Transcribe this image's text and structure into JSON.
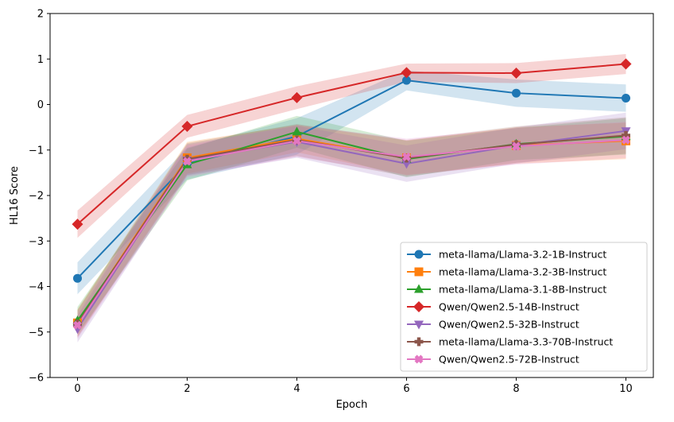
{
  "chart_data": {
    "type": "line",
    "title": "",
    "xlabel": "Epoch",
    "ylabel": "HL16 Score",
    "xlim": [
      -0.5,
      10.5
    ],
    "ylim": [
      -6,
      2
    ],
    "xticks": [
      0,
      2,
      4,
      6,
      8,
      10
    ],
    "yticks": [
      -6,
      -5,
      -4,
      -3,
      -2,
      -1,
      0,
      1,
      2
    ],
    "ytick_labels": [
      "−6",
      "−5",
      "−4",
      "−3",
      "−2",
      "−1",
      "0",
      "1",
      "2"
    ],
    "grid": false,
    "legend_position": "bottom-right",
    "x": [
      0,
      2,
      4,
      6,
      8,
      10
    ],
    "series": [
      {
        "name": "meta-llama/Llama-3.2-1B-Instruct",
        "color": "#1f77b4",
        "marker": "circle",
        "values": [
          -3.82,
          -1.3,
          -0.7,
          0.53,
          0.25,
          0.14
        ],
        "band": [
          0.35,
          0.35,
          0.4,
          0.22,
          0.3,
          0.3
        ]
      },
      {
        "name": "meta-llama/Llama-3.2-3B-Instruct",
        "color": "#ff7f0e",
        "marker": "square",
        "values": [
          -4.8,
          -1.17,
          -0.75,
          -1.17,
          -0.9,
          -0.8
        ],
        "band": [
          0.3,
          0.35,
          0.3,
          0.38,
          0.4,
          0.4
        ]
      },
      {
        "name": "meta-llama/Llama-3.1-8B-Instruct",
        "color": "#2ca02c",
        "marker": "triangle-up",
        "values": [
          -4.75,
          -1.32,
          -0.6,
          -1.2,
          -0.87,
          -0.7
        ],
        "band": [
          0.3,
          0.35,
          0.35,
          0.4,
          0.35,
          0.4
        ]
      },
      {
        "name": "Qwen/Qwen2.5-14B-Instruct",
        "color": "#d62728",
        "marker": "diamond",
        "values": [
          -2.63,
          -0.48,
          0.15,
          0.7,
          0.69,
          0.89
        ],
        "band": [
          0.3,
          0.25,
          0.25,
          0.2,
          0.22,
          0.22
        ]
      },
      {
        "name": "Qwen/Qwen2.5-32B-Instruct",
        "color": "#9467bd",
        "marker": "triangle-down",
        "values": [
          -4.93,
          -1.22,
          -0.82,
          -1.3,
          -0.9,
          -0.58
        ],
        "band": [
          0.3,
          0.35,
          0.35,
          0.4,
          0.4,
          0.4
        ]
      },
      {
        "name": "meta-llama/Llama-3.3-70B-Instruct",
        "color": "#8c564b",
        "marker": "plus",
        "values": [
          -4.82,
          -1.2,
          -0.78,
          -1.18,
          -0.88,
          -0.68
        ],
        "band": [
          0.3,
          0.35,
          0.35,
          0.4,
          0.4,
          0.4
        ]
      },
      {
        "name": "Qwen/Qwen2.5-72B-Instruct",
        "color": "#e377c2",
        "marker": "x-filled",
        "values": [
          -4.85,
          -1.25,
          -0.8,
          -1.15,
          -0.92,
          -0.78
        ],
        "band": [
          0.3,
          0.35,
          0.35,
          0.4,
          0.4,
          0.4
        ]
      }
    ]
  }
}
